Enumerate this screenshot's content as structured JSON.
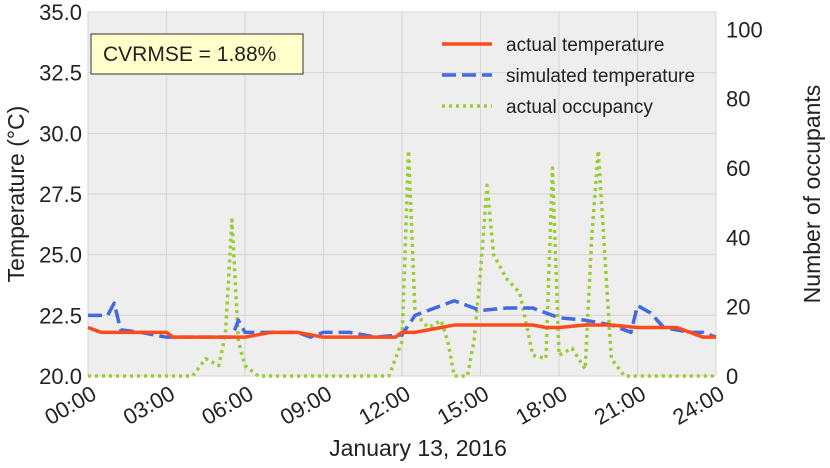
{
  "chart_data": {
    "type": "line",
    "xlabel": "January 13, 2016",
    "ylabel": "Temperature (°C)",
    "y2label": "Number of occupants",
    "xlim": [
      0,
      24
    ],
    "ylim": [
      20.0,
      35.0
    ],
    "y2lim": [
      0,
      105
    ],
    "x_ticks": [
      0,
      3,
      6,
      9,
      12,
      15,
      18,
      21,
      24
    ],
    "x_tick_labels": [
      "00:00",
      "03:00",
      "06:00",
      "09:00",
      "12:00",
      "15:00",
      "18:00",
      "21:00",
      "24:00"
    ],
    "y_ticks": [
      20.0,
      22.5,
      25.0,
      27.5,
      30.0,
      32.5,
      35.0
    ],
    "y_tick_labels": [
      "20.0",
      "22.5",
      "25.0",
      "27.5",
      "30.0",
      "32.5",
      "35.0"
    ],
    "y2_ticks": [
      0,
      20,
      40,
      60,
      80,
      100
    ],
    "y2_tick_labels": [
      "0",
      "20",
      "40",
      "60",
      "80",
      "100"
    ],
    "grid": true,
    "legend_position": "top-right",
    "annotation": "CVRMSE = 1.88%",
    "series": [
      {
        "name": "actual temperature",
        "axis": "left",
        "color": "#ff4a1c",
        "style": "solid",
        "x": [
          0,
          0.5,
          1,
          2,
          3,
          3.25,
          4,
          5,
          6,
          7,
          8,
          9,
          10,
          11,
          11.75,
          12,
          12.5,
          13,
          14,
          15,
          16,
          17,
          17.5,
          18,
          19,
          20,
          21,
          22,
          22.5,
          23,
          23.5,
          24
        ],
        "y": [
          22.0,
          21.8,
          21.8,
          21.8,
          21.8,
          21.6,
          21.6,
          21.6,
          21.6,
          21.8,
          21.8,
          21.6,
          21.6,
          21.6,
          21.6,
          21.8,
          21.8,
          21.9,
          22.1,
          22.1,
          22.1,
          22.1,
          22.0,
          22.0,
          22.1,
          22.1,
          22.0,
          22.0,
          22.0,
          21.8,
          21.6,
          21.6
        ]
      },
      {
        "name": "simulated temperature",
        "axis": "left",
        "color": "#4169e1",
        "style": "dashed",
        "x": [
          0,
          0.75,
          1,
          1.25,
          2,
          3,
          4,
          5,
          5.5,
          5.75,
          6,
          7,
          8,
          8.5,
          9,
          10,
          11,
          12,
          12.5,
          13,
          14,
          15,
          16,
          17,
          18,
          19,
          20,
          20.75,
          21,
          21.5,
          22,
          23,
          23.5,
          24
        ],
        "y": [
          22.5,
          22.5,
          23.0,
          21.9,
          21.8,
          21.6,
          21.6,
          21.6,
          21.6,
          22.3,
          21.8,
          21.8,
          21.8,
          21.6,
          21.8,
          21.8,
          21.6,
          21.7,
          22.5,
          22.7,
          23.1,
          22.7,
          22.8,
          22.8,
          22.4,
          22.3,
          22.1,
          21.8,
          22.9,
          22.6,
          22.0,
          21.8,
          21.8,
          21.6
        ]
      },
      {
        "name": "actual occupancy",
        "axis": "right",
        "color": "#9acd32",
        "style": "dotted",
        "x": [
          0,
          1,
          2,
          3,
          4,
          4.5,
          5,
          5.25,
          5.5,
          5.75,
          6,
          6.5,
          7,
          8,
          9,
          10,
          11,
          11.5,
          12,
          12.25,
          12.5,
          13,
          13.5,
          13.75,
          14,
          14.25,
          14.5,
          14.75,
          15,
          15.25,
          15.5,
          16,
          16.5,
          17,
          17.5,
          17.75,
          18,
          18.5,
          19,
          19.25,
          19.5,
          20,
          20.5,
          21,
          22,
          23,
          24
        ],
        "y": [
          0,
          0,
          0,
          0,
          0,
          5,
          3,
          12,
          45,
          10,
          3,
          0,
          0,
          0,
          0,
          0,
          0,
          0,
          10,
          65,
          18,
          14,
          16,
          10,
          0,
          0,
          0,
          10,
          30,
          55,
          35,
          28,
          24,
          6,
          5,
          60,
          6,
          8,
          2,
          40,
          65,
          5,
          0,
          0,
          0,
          0,
          0
        ]
      }
    ]
  }
}
